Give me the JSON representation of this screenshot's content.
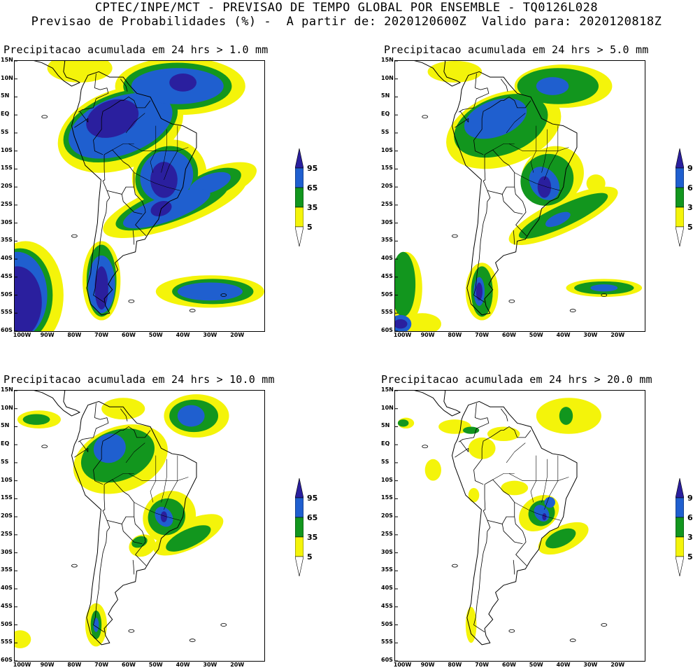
{
  "header": {
    "line1": "CPTEC/INPE/MCT - PREVISAO DE TEMPO GLOBAL POR ENSEMBLE - TQ0126L028",
    "line2": "Previsao de Probabilidades (%) -  A partir de: 2020120600Z  Valido para: 2020120818Z"
  },
  "lat_labels": [
    "15N",
    "10N",
    "5N",
    "EQ",
    "5S",
    "10S",
    "15S",
    "20S",
    "25S",
    "30S",
    "35S",
    "40S",
    "45S",
    "50S",
    "55S",
    "60S"
  ],
  "lon_labels": [
    "100W",
    "90W",
    "80W",
    "70W",
    "60W",
    "50W",
    "40W",
    "30W",
    "20W"
  ],
  "legend": {
    "levels": [
      "95",
      "65",
      "35",
      "5"
    ],
    "colors": {
      "c95": "#2a1f9e",
      "c65": "#1f5fcf",
      "c35": "#12961e",
      "c5": "#f4f40a"
    }
  },
  "panels": [
    {
      "title": "Precipitacao acumulada em 24 hrs > 1.0 mm"
    },
    {
      "title": "Precipitacao acumulada em 24 hrs > 5.0 mm"
    },
    {
      "title": "Precipitacao acumulada em 24 hrs > 10.0 mm"
    },
    {
      "title": "Precipitacao acumulada em 24 hrs > 20.0 mm"
    }
  ]
}
